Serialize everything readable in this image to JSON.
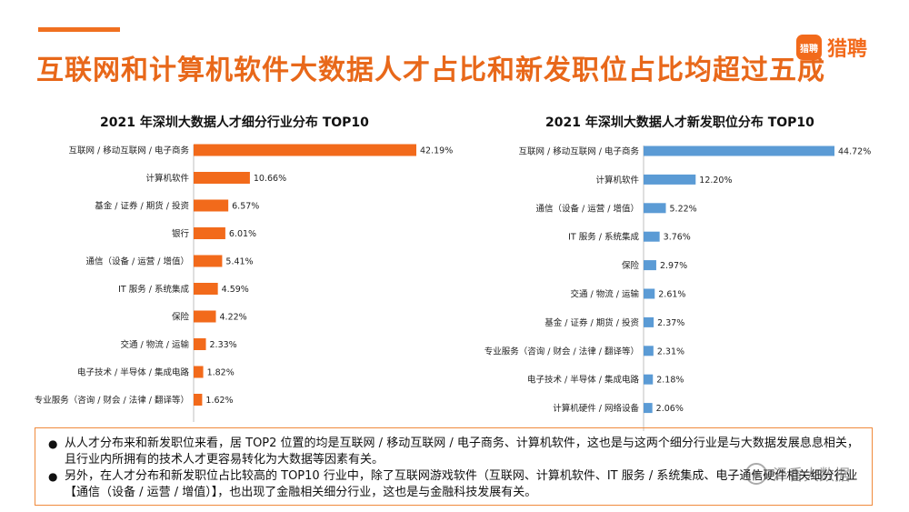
{
  "page": {
    "title": "互联网和计算机软件大数据人才占比和新发职位占比均超过五成"
  },
  "logo": {
    "badge": "猎聘",
    "text": "猎聘"
  },
  "colors": {
    "accent": "#e8681a",
    "left_bar": "#f26a1b",
    "right_bar": "#5b9bd5"
  },
  "chart_data": [
    {
      "type": "bar",
      "orientation": "horizontal",
      "title": "2021 年深圳大数据人才细分行业分布 TOP10",
      "categories": [
        "互联网 / 移动互联网 / 电子商务",
        "计算机软件",
        "基金 / 证券 / 期货 / 投资",
        "银行",
        "通信（设备 / 运营 / 增值）",
        "IT 服务 / 系统集成",
        "保险",
        "交通 / 物流 / 运输",
        "电子技术 / 半导体 / 集成电路",
        "专业服务（咨询 / 财会 / 法律 / 翻译等）"
      ],
      "values": [
        42.19,
        10.66,
        6.57,
        6.01,
        5.41,
        4.59,
        4.22,
        2.33,
        1.82,
        1.62
      ],
      "value_labels": [
        "42.19%",
        "10.66%",
        "6.57%",
        "6.01%",
        "5.41%",
        "4.59%",
        "4.22%",
        "2.33%",
        "1.82%",
        "1.62%"
      ],
      "color": "#f26a1b",
      "grid": false
    },
    {
      "type": "bar",
      "orientation": "horizontal",
      "title": "2021 年深圳大数据人才新发职位分布 TOP10",
      "categories": [
        "互联网 / 移动互联网 / 电子商务",
        "计算机软件",
        "通信（设备 / 运营 / 增值）",
        "IT 服务 / 系统集成",
        "保险",
        "交通 / 物流 / 运输",
        "基金 / 证券 / 期货 / 投资",
        "专业服务（咨询 / 财会 / 法律 / 翻译等）",
        "电子技术 / 半导体 / 集成电路",
        "计算机硬件 / 网络设备"
      ],
      "values": [
        44.72,
        12.2,
        5.22,
        3.76,
        2.97,
        2.61,
        2.37,
        2.31,
        2.18,
        2.06
      ],
      "value_labels": [
        "44.72%",
        "12.20%",
        "5.22%",
        "3.76%",
        "2.97%",
        "2.61%",
        "2.37%",
        "2.31%",
        "2.18%",
        "2.06%"
      ],
      "color": "#5b9bd5",
      "grid": false
    }
  ],
  "notes": [
    {
      "bullet": "●",
      "text": "从人才分布来和新发职位来看，居 TOP2 位置的均是互联网 / 移动互联网 / 电子商务、计算机软件，这也是与这两个细分行业是与大数据发展息息相关，且行业内所拥有的技术人才更容易转化为大数据等因素有关。"
    },
    {
      "bullet": "●",
      "text": "另外，在人才分布和新发职位占比较高的 TOP10 行业中，除了互联网游戏软件（互联网、计算机软件、IT 服务 / 系统集成、电子通信硬件相关细分行业【通信（设备 / 运营 / 增值）】，也出现了金融相关细分行业，这也是与金融科技发展有关。"
    }
  ],
  "watermark": {
    "text": "泽香大数据"
  }
}
